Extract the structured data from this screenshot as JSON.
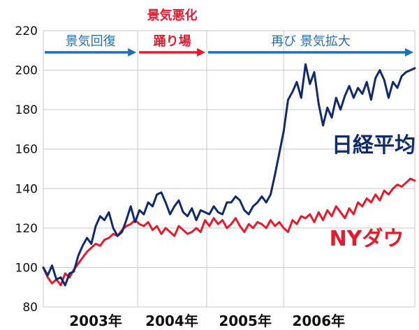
{
  "chart_data": {
    "type": "line",
    "title": "",
    "xlabel": "",
    "ylabel": "",
    "ylim": [
      80,
      220
    ],
    "y_ticks": [
      "80",
      "100",
      "120",
      "140",
      "160",
      "180",
      "200",
      "220"
    ],
    "x_tick_labels": [
      "2003年",
      "2004年",
      "2005年",
      "2006年"
    ],
    "grid": true,
    "x_range": [
      2002.75,
      2007.0
    ],
    "phases": [
      {
        "label": "景気回復",
        "start": 2002.75,
        "end": 2003.83,
        "color": "#1f6fb8"
      },
      {
        "label": "景気悪化",
        "label2": "踊り場",
        "start": 2003.83,
        "end": 2004.62,
        "color": "#e8192c"
      },
      {
        "label": "再び 景気拡大",
        "start": 2004.62,
        "end": 2007.0,
        "color": "#1f6fb8"
      }
    ],
    "series": [
      {
        "name": "日経平均",
        "color": "#102a6b",
        "label_color": "#102a6b",
        "x": [
          2002.75,
          2002.8,
          2002.85,
          2002.9,
          2002.95,
          2003.0,
          2003.05,
          2003.1,
          2003.15,
          2003.2,
          2003.25,
          2003.3,
          2003.35,
          2003.4,
          2003.45,
          2003.5,
          2003.55,
          2003.6,
          2003.65,
          2003.7,
          2003.75,
          2003.8,
          2003.85,
          2003.9,
          2003.95,
          2004.0,
          2004.05,
          2004.1,
          2004.15,
          2004.2,
          2004.25,
          2004.3,
          2004.35,
          2004.4,
          2004.45,
          2004.5,
          2004.55,
          2004.6,
          2004.65,
          2004.7,
          2004.75,
          2004.8,
          2004.85,
          2004.9,
          2004.95,
          2005.0,
          2005.05,
          2005.1,
          2005.15,
          2005.2,
          2005.25,
          2005.3,
          2005.35,
          2005.4,
          2005.45,
          2005.5,
          2005.55,
          2005.6,
          2005.65,
          2005.7,
          2005.75,
          2005.8,
          2005.85,
          2005.9,
          2005.95,
          2006.0,
          2006.05,
          2006.1,
          2006.15,
          2006.2,
          2006.25,
          2006.3,
          2006.35,
          2006.4,
          2006.45,
          2006.5,
          2006.55,
          2006.6,
          2006.65,
          2006.7,
          2006.75,
          2006.8,
          2006.85,
          2006.9,
          2006.95,
          2007.0
        ],
        "values": [
          100,
          96,
          101,
          94,
          95,
          91,
          97,
          98,
          106,
          111,
          115,
          112,
          121,
          126,
          124,
          128,
          120,
          116,
          118,
          124,
          131,
          123,
          129,
          127,
          133,
          131,
          137,
          138,
          133,
          127,
          131,
          134,
          128,
          126,
          130,
          124,
          129,
          128,
          127,
          131,
          128,
          127,
          133,
          133,
          136,
          134,
          129,
          127,
          131,
          133,
          136,
          133,
          137,
          147,
          158,
          169,
          185,
          189,
          194,
          186,
          203,
          193,
          199,
          183,
          172,
          181,
          176,
          186,
          180,
          187,
          192,
          186,
          191,
          188,
          194,
          185,
          196,
          200,
          195,
          186,
          194,
          191,
          197,
          199,
          200,
          201
        ]
      },
      {
        "name": "NYダウ",
        "color": "#e8192c",
        "label_color": "#e8192c",
        "x": [
          2002.75,
          2002.8,
          2002.85,
          2002.9,
          2002.95,
          2003.0,
          2003.05,
          2003.1,
          2003.15,
          2003.2,
          2003.25,
          2003.3,
          2003.35,
          2003.4,
          2003.45,
          2003.5,
          2003.55,
          2003.6,
          2003.65,
          2003.7,
          2003.75,
          2003.8,
          2003.85,
          2003.9,
          2003.95,
          2004.0,
          2004.05,
          2004.1,
          2004.15,
          2004.2,
          2004.25,
          2004.3,
          2004.35,
          2004.4,
          2004.45,
          2004.5,
          2004.55,
          2004.6,
          2004.65,
          2004.7,
          2004.75,
          2004.8,
          2004.85,
          2004.9,
          2004.95,
          2005.0,
          2005.05,
          2005.1,
          2005.15,
          2005.2,
          2005.25,
          2005.3,
          2005.35,
          2005.4,
          2005.45,
          2005.5,
          2005.55,
          2005.6,
          2005.65,
          2005.7,
          2005.75,
          2005.8,
          2005.85,
          2005.9,
          2005.95,
          2006.0,
          2006.05,
          2006.1,
          2006.15,
          2006.2,
          2006.25,
          2006.3,
          2006.35,
          2006.4,
          2006.45,
          2006.5,
          2006.55,
          2006.6,
          2006.65,
          2006.7,
          2006.75,
          2006.8,
          2006.85,
          2006.9,
          2006.95,
          2007.0
        ],
        "values": [
          100,
          95,
          92,
          94,
          91,
          97,
          95,
          99,
          102,
          105,
          108,
          110,
          112,
          111,
          114,
          115,
          117,
          116,
          119,
          121,
          122,
          124,
          122,
          121,
          123,
          119,
          121,
          117,
          120,
          118,
          116,
          121,
          119,
          117,
          118,
          120,
          118,
          124,
          121,
          125,
          122,
          124,
          120,
          122,
          125,
          121,
          118,
          122,
          120,
          123,
          122,
          120,
          124,
          121,
          123,
          120,
          118,
          124,
          122,
          126,
          125,
          127,
          123,
          128,
          124,
          129,
          126,
          131,
          128,
          125,
          130,
          127,
          133,
          131,
          135,
          133,
          137,
          134,
          139,
          137,
          140,
          142,
          141,
          143,
          145,
          144
        ]
      }
    ]
  }
}
